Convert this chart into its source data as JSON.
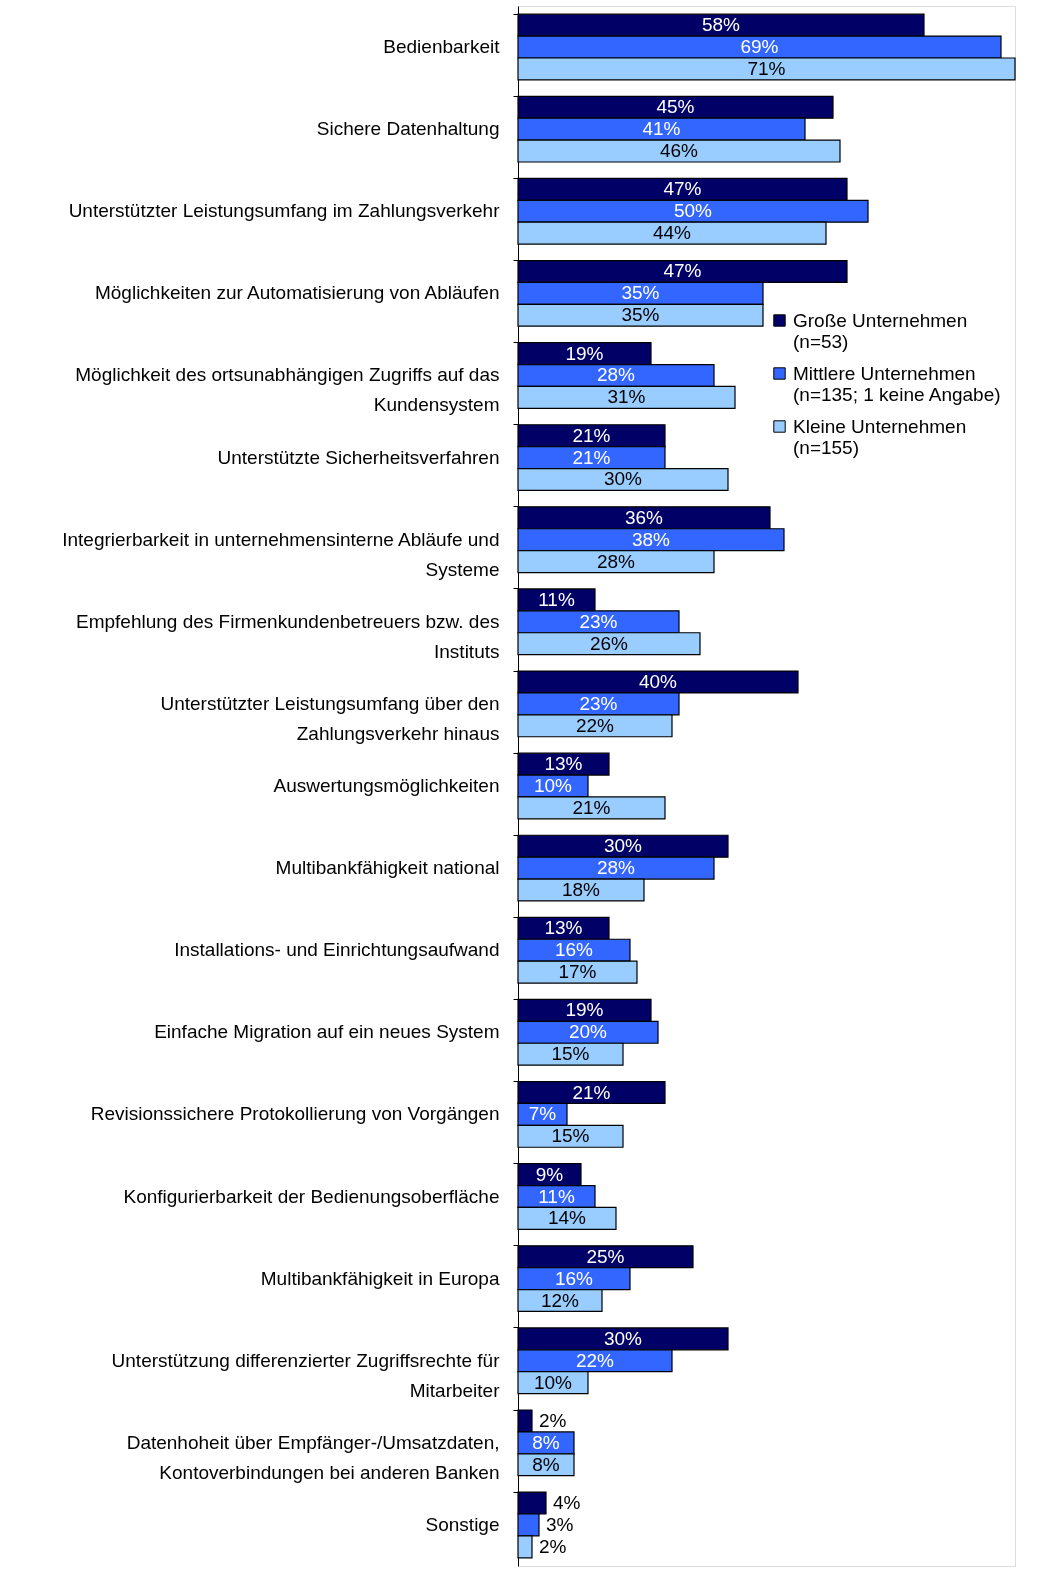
{
  "chart_data": {
    "type": "bar",
    "orientation": "horizontal",
    "legend": "right",
    "categories": [
      "Bedienbarkeit",
      "Sichere Datenhaltung",
      "Unterstützter Leistungsumfang im Zahlungsverkehr",
      "Möglichkeiten zur Automatisierung von Abläufen",
      "Möglichkeit des ortsunabhängigen Zugriffs auf das Kundensystem",
      "Unterstützte Sicherheitsverfahren",
      "Integrierbarkeit in unternehmensinterne Abläufe und Systeme",
      "Empfehlung des Firmenkundenbetreuers bzw. des Instituts",
      "Unterstützter Leistungsumfang über den Zahlungsverkehr hinaus",
      "Auswertungsmöglichkeiten",
      "Multibankfähigkeit national",
      "Installations- und Einrichtungsaufwand",
      "Einfache Migration auf ein neues System",
      "Revisionssichere Protokollierung von Vorgängen",
      "Konfigurierbarkeit der Bedienungsoberfläche",
      "Multibankfähigkeit in Europa",
      "Unterstützung differenzierter Zugriffsrechte für Mitarbeiter",
      "Datenhoheit über Empfänger-/Umsatzdaten, Kontoverbindungen bei anderen Banken",
      "Sonstige"
    ],
    "series": [
      {
        "name": "Große Unternehmen (n=53)",
        "color": "#000066",
        "values": [
          58,
          45,
          47,
          47,
          19,
          21,
          36,
          11,
          40,
          13,
          30,
          13,
          19,
          21,
          9,
          25,
          30,
          2,
          4
        ],
        "value_labels": [
          "58%",
          "45%",
          "47%",
          "47%",
          "19%",
          "21%",
          "36%",
          "11%",
          "40%",
          "13%",
          "30%",
          "13%",
          "19%",
          "21%",
          "9%",
          "25%",
          "30%",
          "2%",
          "4%"
        ]
      },
      {
        "name": "Mittlere Unternehmen (n=135; 1 keine Angabe)",
        "color": "#3366ff",
        "values": [
          69,
          41,
          50,
          35,
          28,
          21,
          38,
          23,
          23,
          10,
          28,
          16,
          20,
          7,
          11,
          16,
          22,
          8,
          3
        ],
        "value_labels": [
          "69%",
          "41%",
          "50%",
          "35%",
          "28%",
          "21%",
          "38%",
          "23%",
          "23%",
          "10%",
          "28%",
          "16%",
          "20%",
          "7%",
          "11%",
          "16%",
          "22%",
          "8%",
          "3%"
        ]
      },
      {
        "name": "Kleine Unternehmen (n=155)",
        "color": "#99ccff",
        "values": [
          71,
          46,
          44,
          35,
          31,
          30,
          28,
          26,
          22,
          21,
          18,
          17,
          15,
          15,
          14,
          12,
          10,
          8,
          2
        ],
        "value_labels": [
          "71%",
          "46%",
          "44%",
          "35%",
          "31%",
          "30%",
          "28%",
          "26%",
          "22%",
          "21%",
          "18%",
          "17%",
          "15%",
          "15%",
          "14%",
          "12%",
          "10%",
          "8%",
          "2%"
        ]
      }
    ]
  }
}
